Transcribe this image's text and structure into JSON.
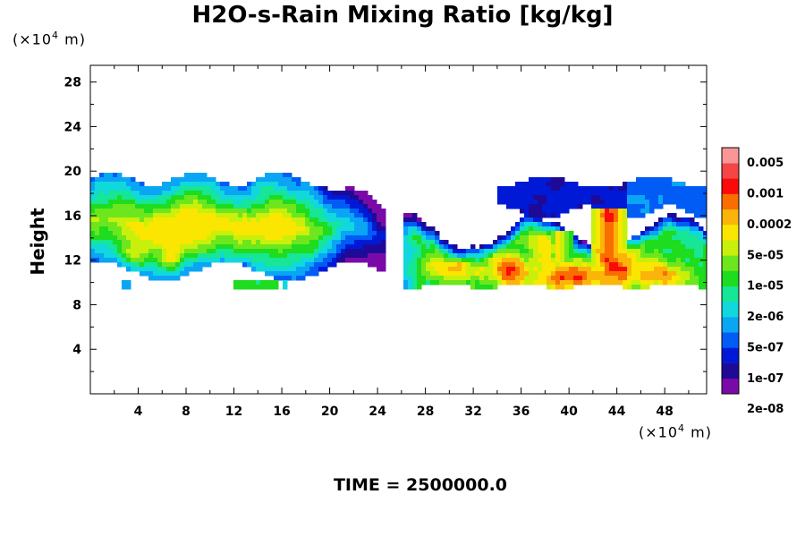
{
  "chart_data": {
    "type": "heatmap",
    "title": "H2O-s-Rain Mixing Ratio [kg/kg]",
    "xlabel": "",
    "ylabel": "Height",
    "x_unit": "(×10",
    "x_unit_exp": "4",
    "x_unit_tail": " m)",
    "y_unit": "(×10",
    "y_unit_exp": "4",
    "y_unit_tail": " m)",
    "xlim": [
      0,
      51.5
    ],
    "ylim": [
      0,
      29.5
    ],
    "xticks": [
      4,
      8,
      12,
      16,
      20,
      24,
      28,
      32,
      36,
      40,
      44,
      48
    ],
    "yticks": [
      4,
      8,
      12,
      16,
      20,
      24,
      28
    ],
    "colorbar": {
      "labels": [
        "0.005",
        "0.001",
        "0.0002",
        "5e-05",
        "1e-05",
        "2e-06",
        "5e-07",
        "1e-07",
        "2e-08"
      ],
      "colors": [
        "#7a0aa8",
        "#1e0a96",
        "#0019d6",
        "#005cf5",
        "#0aa5f5",
        "#10d8dc",
        "#16e696",
        "#1edc1e",
        "#6ee61e",
        "#c8f00a",
        "#fae600",
        "#fab40a",
        "#fa6e00",
        "#fa0a0a",
        "#f54646",
        "#fa9696"
      ]
    },
    "regions": [
      {
        "name": "upper-west-band",
        "x": [
          0,
          24
        ],
        "y": [
          9.5,
          19.8
        ],
        "levels": "2e-08 to 0.001"
      },
      {
        "name": "west-core",
        "x": [
          3,
          16
        ],
        "y": [
          11.5,
          16.5
        ],
        "levels": "5e-05 to 0.0002"
      },
      {
        "name": "small-cell-13",
        "x": [
          12,
          16
        ],
        "y": [
          9.5,
          10.2
        ],
        "levels": "5e-05 to 0.0002"
      },
      {
        "name": "upper-east-band",
        "x": [
          34,
          51.5
        ],
        "y": [
          15.5,
          19.5
        ],
        "levels": "2e-08 to 1e-07"
      },
      {
        "name": "convective-east",
        "x": [
          26,
          51.5
        ],
        "y": [
          9.5,
          16.5
        ],
        "levels": "2e-06 to 0.005"
      }
    ]
  },
  "footer": {
    "time_label": "TIME = 2500000.0"
  }
}
